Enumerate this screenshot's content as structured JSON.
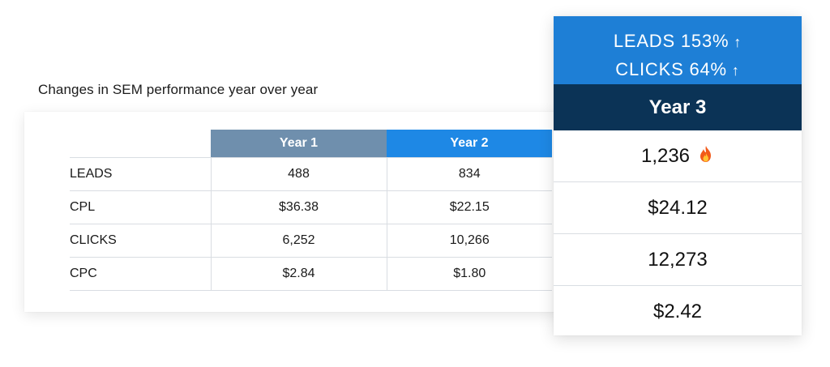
{
  "caption": "Changes in SEM performance year over year",
  "table": {
    "headers": [
      "",
      "Year 1",
      "Year 2"
    ],
    "rows": [
      {
        "label": "LEADS",
        "y1": "488",
        "y2": "834"
      },
      {
        "label": "CPL",
        "y1": "$36.38",
        "y2": "$22.15"
      },
      {
        "label": "CLICKS",
        "y1": "6,252",
        "y2": "10,266"
      },
      {
        "label": "CPC",
        "y1": "$2.84",
        "y2": "$1.80"
      }
    ]
  },
  "year3": {
    "banner_line1": "LEADS 153%",
    "banner_line2": "CLICKS 64%",
    "arrow": "↑",
    "header": "Year 3",
    "values": [
      "1,236",
      "$24.12",
      "12,273",
      "$2.42"
    ],
    "leads_icon": "fire-icon"
  },
  "colors": {
    "year1_header": "#6f8fad",
    "year2_header": "#1e88e5",
    "year3_banner": "#1e7fd6",
    "year3_header": "#0b3356"
  }
}
